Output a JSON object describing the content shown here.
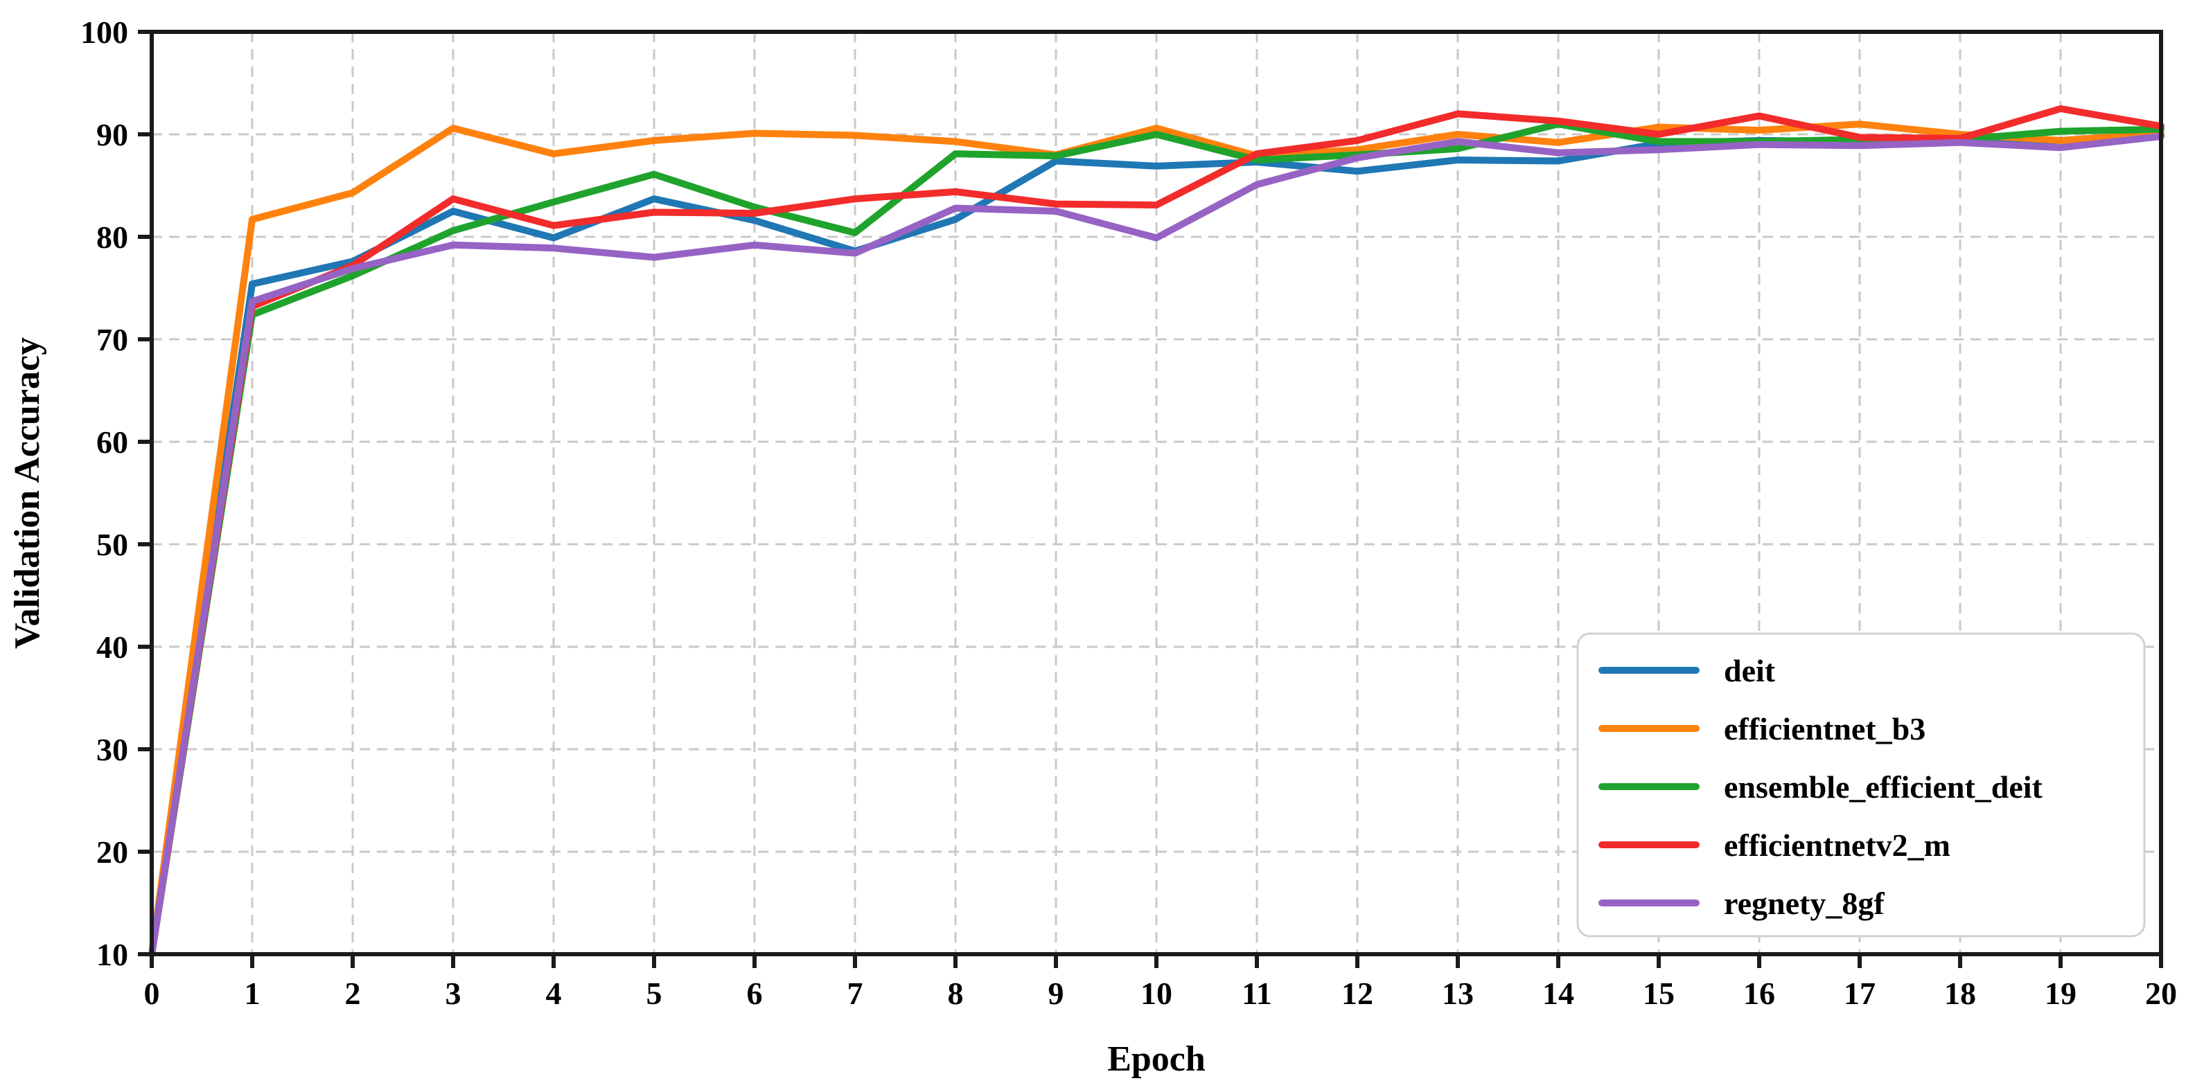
{
  "chart_data": {
    "type": "line",
    "title": "",
    "xlabel": "Epoch",
    "ylabel": "Validation Accuracy",
    "xlim": [
      0,
      20
    ],
    "ylim": [
      10,
      100
    ],
    "xticks": [
      0,
      1,
      2,
      3,
      4,
      5,
      6,
      7,
      8,
      9,
      10,
      11,
      12,
      13,
      14,
      15,
      16,
      17,
      18,
      19,
      20
    ],
    "yticks": [
      10,
      20,
      30,
      40,
      50,
      60,
      70,
      80,
      90,
      100
    ],
    "grid": {
      "visible": true,
      "style": "dashed",
      "color": "#c9c9c9"
    },
    "legend": {
      "position": "lower right",
      "border_color": "#d2d2d2",
      "background": "#ffffff"
    },
    "x": [
      0,
      1,
      2,
      3,
      4,
      5,
      6,
      7,
      8,
      9,
      10,
      11,
      12,
      13,
      14,
      15,
      16,
      17,
      18,
      19,
      20
    ],
    "series": [
      {
        "name": "deit",
        "color": "#1f77b4",
        "values": [
          10,
          75.4,
          77.6,
          82.5,
          79.9,
          83.7,
          81.6,
          78.6,
          81.7,
          87.4,
          86.9,
          87.3,
          86.4,
          87.5,
          87.4,
          89.1,
          89.4,
          89.3,
          89.3,
          89.4,
          89.9
        ]
      },
      {
        "name": "efficientnet_b3",
        "color": "#ff810e",
        "values": [
          10,
          81.7,
          84.3,
          90.6,
          88.1,
          89.4,
          90.1,
          89.9,
          89.3,
          88.0,
          90.6,
          87.9,
          88.5,
          90.0,
          89.2,
          90.7,
          90.4,
          91.0,
          90.0,
          89.4,
          90.1
        ]
      },
      {
        "name": "ensemble_efficient_deit",
        "color": "#1fa32c",
        "values": [
          10,
          72.4,
          76.2,
          80.6,
          83.4,
          86.1,
          82.9,
          80.4,
          88.1,
          87.9,
          90.0,
          87.5,
          88.0,
          88.6,
          91.0,
          89.3,
          89.3,
          89.5,
          89.5,
          90.3,
          90.5
        ]
      },
      {
        "name": "efficientnetv2_m",
        "color": "#f22b2b",
        "values": [
          10,
          73.2,
          77.2,
          83.7,
          81.1,
          82.4,
          82.3,
          83.7,
          84.4,
          83.2,
          83.1,
          88.1,
          89.4,
          92.0,
          91.3,
          90.0,
          91.8,
          89.7,
          89.6,
          92.5,
          90.8
        ]
      },
      {
        "name": "regnety_8gf",
        "color": "#9663c4",
        "values": [
          10,
          73.7,
          76.9,
          79.2,
          78.9,
          78.0,
          79.2,
          78.4,
          82.8,
          82.5,
          79.9,
          85.1,
          87.7,
          89.3,
          88.2,
          88.5,
          89.0,
          88.9,
          89.2,
          88.7,
          89.8
        ]
      }
    ]
  }
}
